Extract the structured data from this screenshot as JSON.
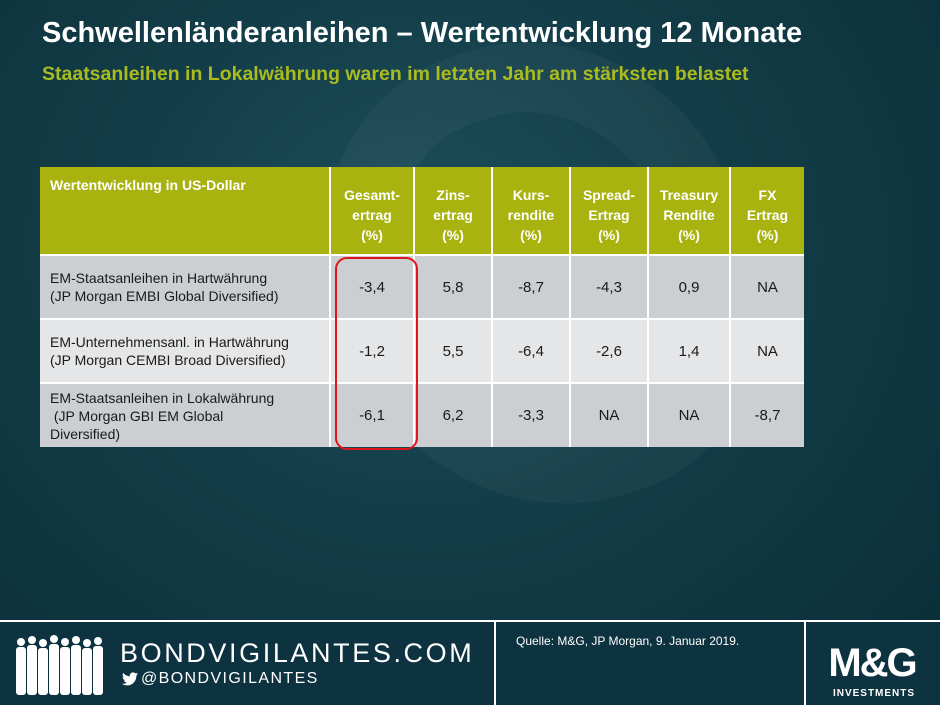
{
  "title": "Schwellenländeranleihen – Wertentwicklung 12 Monate",
  "subtitle": "Staatsanleihen in Lokalwährung waren im letzten Jahr am stärksten belastet",
  "chart_data": {
    "type": "table",
    "corner_header": "Wertentwicklung in US-Dollar",
    "columns": [
      [
        "Gesamt-",
        "ertrag",
        "(%)"
      ],
      [
        "Zins-",
        "ertrag",
        "(%)"
      ],
      [
        "Kurs-",
        "rendite",
        "(%)"
      ],
      [
        "Spread-",
        "Ertrag",
        "(%)"
      ],
      [
        "Treasury",
        "Rendite",
        "(%)"
      ],
      [
        "FX",
        "Ertrag",
        "(%)"
      ]
    ],
    "rows": [
      {
        "label_lines": [
          "EM-Staatsanleihen  in Hartwährung",
          "(JP Morgan EMBI Global Diversified)"
        ],
        "values": [
          "-3,4",
          "5,8",
          "-8,7",
          "-4,3",
          "0,9",
          "NA"
        ]
      },
      {
        "label_lines": [
          "EM-Unternehmensanl.  in Hartwährung",
          "(JP Morgan CEMBI Broad Diversified)"
        ],
        "values": [
          "-1,2",
          "5,5",
          "-6,4",
          "-2,6",
          "1,4",
          "NA"
        ]
      },
      {
        "label_lines": [
          "EM-Staatsanleihen  in Lokalwährung",
          " (JP Morgan GBI EM Global",
          "Diversified)"
        ],
        "values": [
          "-6,1",
          "6,2",
          "-3,3",
          "NA",
          "NA",
          "-8,7"
        ]
      }
    ],
    "highlighted_column": "Gesamtertrag"
  },
  "footer": {
    "brand": "BONDVIGILANTES.COM",
    "handle": "@BONDVIGILANTES",
    "source": "Quelle:  M&G, JP Morgan,  9. Januar  2019.",
    "logo_text": "M&G",
    "logo_sub": "INVESTMENTS"
  },
  "icons": [
    "people-silhouettes-icon",
    "twitter-bird-icon"
  ],
  "colors": {
    "background": "#123c47",
    "header_green": "#a9b310",
    "subtitle_green": "#a9bb1f",
    "row_dark": "#cbcfd1",
    "row_light": "#e5e6e7",
    "highlight_red": "#e0141b"
  }
}
